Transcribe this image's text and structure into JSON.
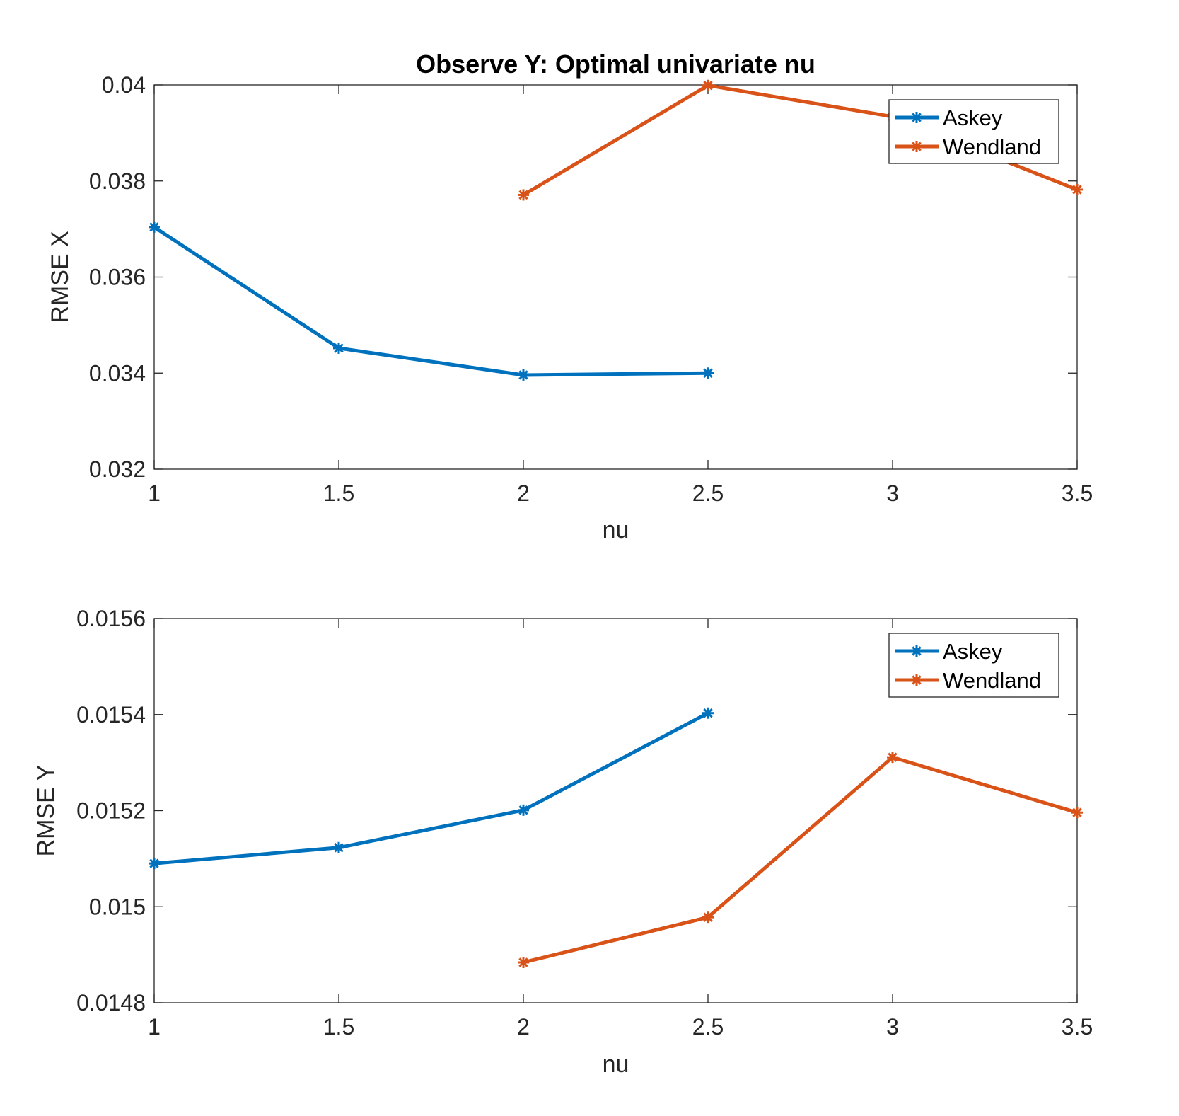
{
  "chart_data": [
    {
      "type": "line",
      "title": "Observe Y: Optimal univariate nu",
      "xlabel": "nu",
      "ylabel": "RMSE X",
      "xlim": [
        1,
        3.5
      ],
      "ylim": [
        0.032,
        0.04
      ],
      "xticks": [
        "1",
        "1.5",
        "2",
        "2.5",
        "3",
        "3.5"
      ],
      "yticks": [
        "0.032",
        "0.034",
        "0.036",
        "0.038",
        "0.04"
      ],
      "legend": "top-right",
      "series": [
        {
          "name": "Askey",
          "color": "#0072BD",
          "x": [
            1,
            1.5,
            2,
            2.5
          ],
          "y": [
            0.03704,
            0.03452,
            0.03396,
            0.034
          ]
        },
        {
          "name": "Wendland",
          "color": "#D95319",
          "x": [
            2,
            2.5,
            3,
            3.5
          ],
          "y": [
            0.03771,
            0.03999,
            0.03934,
            0.03782
          ]
        }
      ]
    },
    {
      "type": "line",
      "title": "",
      "xlabel": "nu",
      "ylabel": "RMSE Y",
      "xlim": [
        1,
        3.5
      ],
      "ylim": [
        0.0148,
        0.0156
      ],
      "xticks": [
        "1",
        "1.5",
        "2",
        "2.5",
        "3",
        "3.5"
      ],
      "yticks": [
        "0.0148",
        "0.015",
        "0.0152",
        "0.0154",
        "0.0156"
      ],
      "legend": "top-right",
      "series": [
        {
          "name": "Askey",
          "color": "#0072BD",
          "x": [
            1,
            1.5,
            2,
            2.5
          ],
          "y": [
            0.01509,
            0.015123,
            0.015201,
            0.015403
          ]
        },
        {
          "name": "Wendland",
          "color": "#D95319",
          "x": [
            2,
            2.5,
            3,
            3.5
          ],
          "y": [
            0.014884,
            0.014978,
            0.015311,
            0.015196
          ]
        }
      ]
    }
  ]
}
